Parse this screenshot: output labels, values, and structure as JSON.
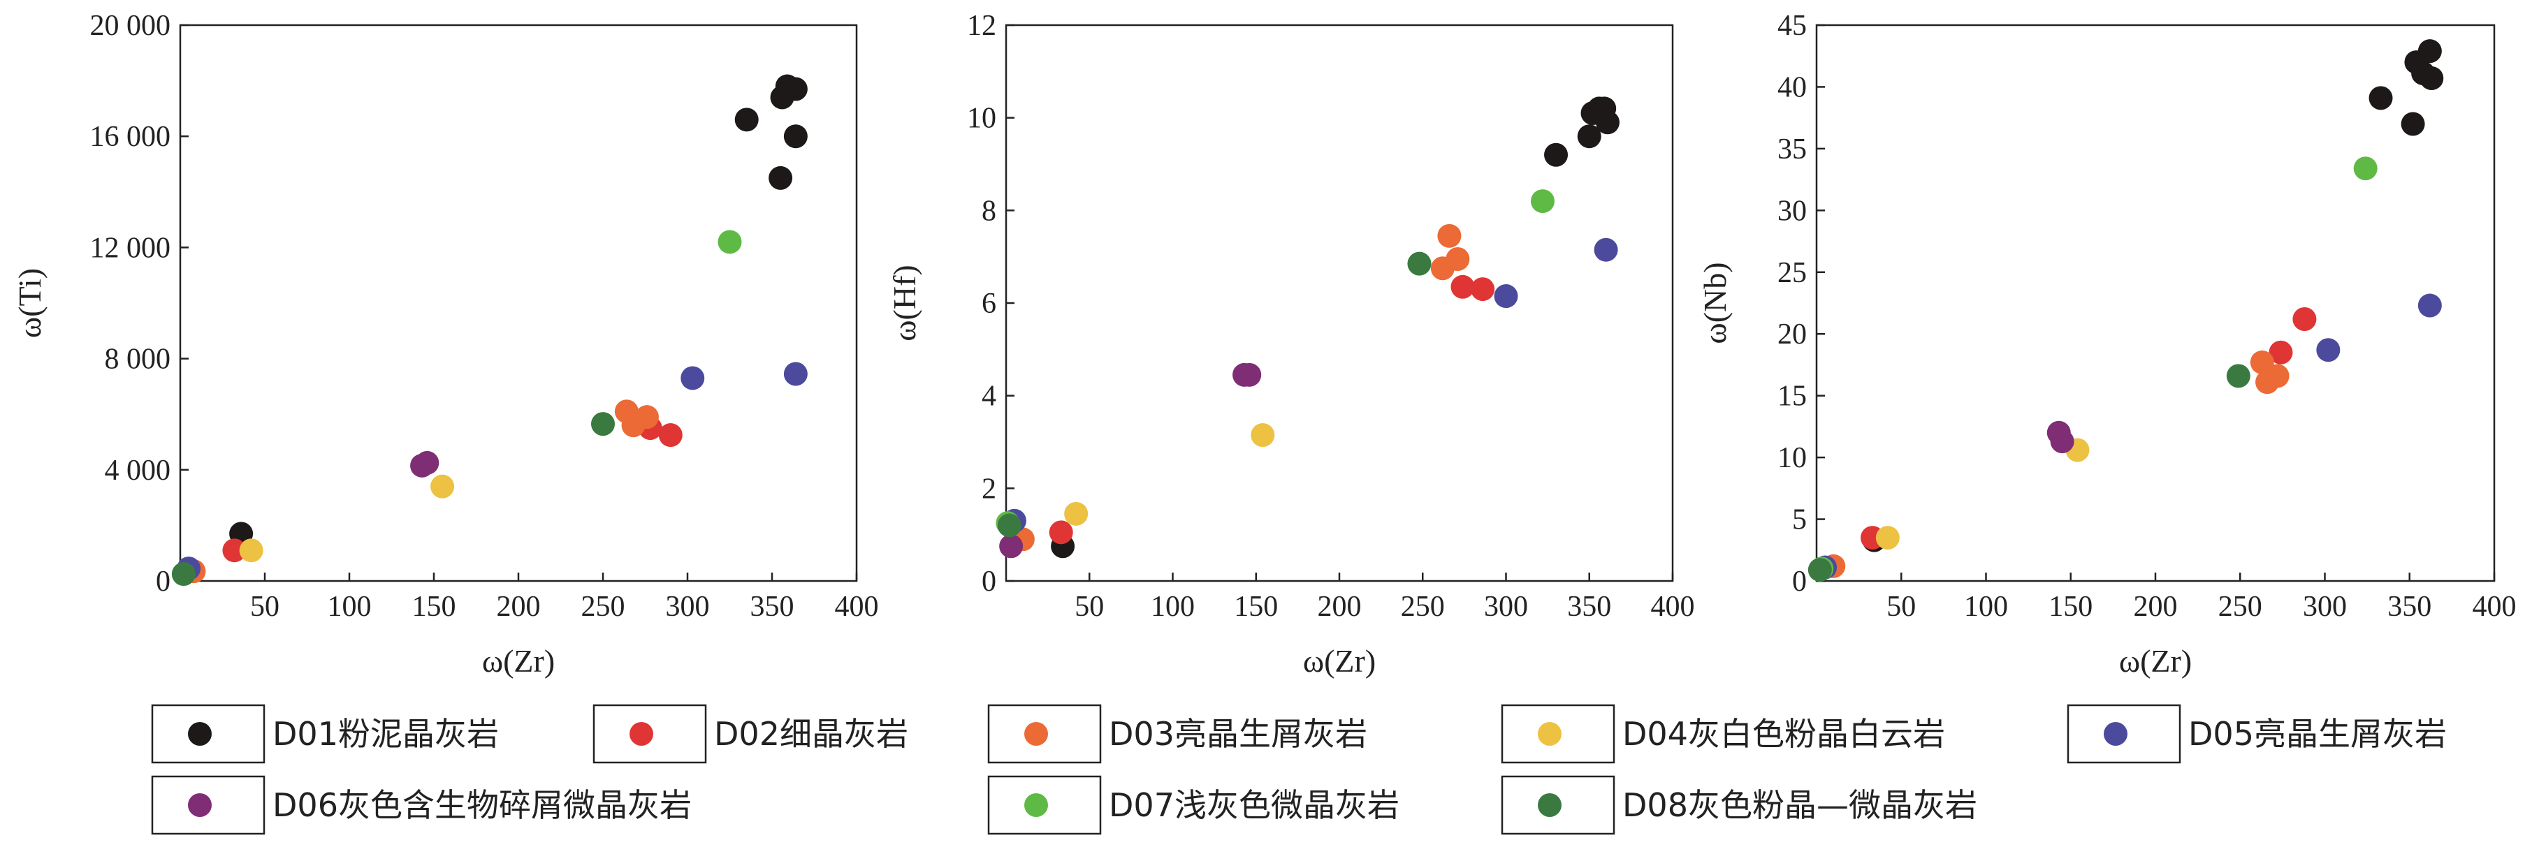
{
  "chart_data": [
    {
      "type": "scatter",
      "xlabel": "ω(Zr)",
      "ylabel": "ω(Ti)",
      "xlim": [
        0,
        400
      ],
      "ylim": [
        0,
        20000
      ],
      "xticks": [
        "50",
        "100",
        "150",
        "200",
        "250",
        "300",
        "350",
        "400"
      ],
      "yticks": [
        "0",
        "4 000",
        "8 000",
        "12 000",
        "16 000",
        "20 000"
      ],
      "series": [
        {
          "legend_index": 0,
          "points": [
            [
              36,
              1700
            ],
            [
              335,
              16600
            ],
            [
              355,
              14500
            ],
            [
              356,
              17400
            ],
            [
              359,
              17800
            ],
            [
              364,
              17700
            ],
            [
              364,
              16000
            ]
          ]
        },
        {
          "legend_index": 1,
          "points": [
            [
              32,
              1100
            ],
            [
              278,
              5500
            ],
            [
              290,
              5250
            ]
          ]
        },
        {
          "legend_index": 2,
          "points": [
            [
              8,
              350
            ],
            [
              264,
              6100
            ],
            [
              268,
              5600
            ],
            [
              276,
              5900
            ]
          ]
        },
        {
          "legend_index": 3,
          "points": [
            [
              42,
              1100
            ],
            [
              155,
              3400
            ]
          ]
        },
        {
          "legend_index": 4,
          "points": [
            [
              5,
              450
            ],
            [
              303,
              7300
            ],
            [
              364,
              7450
            ]
          ]
        },
        {
          "legend_index": 5,
          "points": [
            [
              143,
              4150
            ],
            [
              146,
              4250
            ]
          ]
        },
        {
          "legend_index": 6,
          "points": [
            [
              325,
              12200
            ]
          ]
        },
        {
          "legend_index": 7,
          "points": [
            [
              2,
              250
            ],
            [
              250,
              5650
            ]
          ]
        }
      ]
    },
    {
      "type": "scatter",
      "xlabel": "ω(Zr)",
      "ylabel": "ω(Hf)",
      "xlim": [
        0,
        400
      ],
      "ylim": [
        0,
        12
      ],
      "xticks": [
        "50",
        "100",
        "150",
        "200",
        "250",
        "300",
        "350",
        "400"
      ],
      "yticks": [
        "0",
        "2",
        "4",
        "6",
        "8",
        "10",
        "12"
      ],
      "series": [
        {
          "legend_index": 0,
          "points": [
            [
              34,
              0.75
            ],
            [
              330,
              9.2
            ],
            [
              350,
              9.6
            ],
            [
              352,
              10.1
            ],
            [
              356,
              10.2
            ],
            [
              359,
              10.2
            ],
            [
              361,
              9.9
            ]
          ]
        },
        {
          "legend_index": 1,
          "points": [
            [
              33,
              1.05
            ],
            [
              274,
              6.35
            ],
            [
              286,
              6.3
            ]
          ]
        },
        {
          "legend_index": 2,
          "points": [
            [
              10,
              0.9
            ],
            [
              262,
              6.75
            ],
            [
              266,
              7.45
            ],
            [
              271,
              6.95
            ]
          ]
        },
        {
          "legend_index": 3,
          "points": [
            [
              42,
              1.45
            ],
            [
              154,
              3.15
            ]
          ]
        },
        {
          "legend_index": 4,
          "points": [
            [
              5,
              1.3
            ],
            [
              300,
              6.15
            ],
            [
              360,
              7.15
            ]
          ]
        },
        {
          "legend_index": 5,
          "points": [
            [
              3,
              0.75
            ],
            [
              143,
              4.45
            ],
            [
              146,
              4.45
            ]
          ]
        },
        {
          "legend_index": 6,
          "points": [
            [
              1,
              1.25
            ],
            [
              322,
              8.2
            ]
          ]
        },
        {
          "legend_index": 7,
          "points": [
            [
              2,
              1.2
            ],
            [
              248,
              6.85
            ]
          ]
        }
      ]
    },
    {
      "type": "scatter",
      "xlabel": "ω(Zr)",
      "ylabel": "ω(Nb)",
      "xlim": [
        0,
        400
      ],
      "ylim": [
        0,
        45
      ],
      "xticks": [
        "50",
        "100",
        "150",
        "200",
        "250",
        "300",
        "350",
        "400"
      ],
      "yticks": [
        "0",
        "5",
        "10",
        "15",
        "20",
        "25",
        "30",
        "35",
        "40",
        "45"
      ],
      "series": [
        {
          "legend_index": 0,
          "points": [
            [
              34,
              3.3
            ],
            [
              333,
              39.1
            ],
            [
              352,
              37.0
            ],
            [
              354,
              42.0
            ],
            [
              358,
              41.1
            ],
            [
              362,
              42.9
            ],
            [
              363,
              40.7
            ]
          ]
        },
        {
          "legend_index": 1,
          "points": [
            [
              33,
              3.5
            ],
            [
              274,
              18.5
            ],
            [
              288,
              21.2
            ]
          ]
        },
        {
          "legend_index": 2,
          "points": [
            [
              10,
              1.2
            ],
            [
              263,
              17.7
            ],
            [
              266,
              16.1
            ],
            [
              272,
              16.6
            ]
          ]
        },
        {
          "legend_index": 3,
          "points": [
            [
              42,
              3.5
            ],
            [
              154,
              10.6
            ]
          ]
        },
        {
          "legend_index": 4,
          "points": [
            [
              5,
              1.1
            ],
            [
              302,
              18.7
            ],
            [
              362,
              22.3
            ]
          ]
        },
        {
          "legend_index": 5,
          "points": [
            [
              143,
              12.0
            ],
            [
              145,
              11.3
            ]
          ]
        },
        {
          "legend_index": 6,
          "points": [
            [
              3,
              1.0
            ],
            [
              324,
              33.4
            ]
          ]
        },
        {
          "legend_index": 7,
          "points": [
            [
              2,
              0.9
            ],
            [
              249,
              16.6
            ]
          ]
        }
      ]
    }
  ],
  "legend": [
    {
      "label": "D01粉泥晶灰岩",
      "color": "#1c1918"
    },
    {
      "label": "D02细晶灰岩",
      "color": "#e03535"
    },
    {
      "label": "D03亮晶生屑灰岩",
      "color": "#eb6a35"
    },
    {
      "label": "D04灰白色粉晶白云岩",
      "color": "#edc142"
    },
    {
      "label": "D05亮晶生屑灰岩",
      "color": "#4c4a9c"
    },
    {
      "label": "D06灰色含生物碎屑微晶灰岩",
      "color": "#7f2e75"
    },
    {
      "label": "D07浅灰色微晶灰岩",
      "color": "#5fba45"
    },
    {
      "label": "D08灰色粉晶—微晶灰岩",
      "color": "#3a7a40"
    }
  ]
}
